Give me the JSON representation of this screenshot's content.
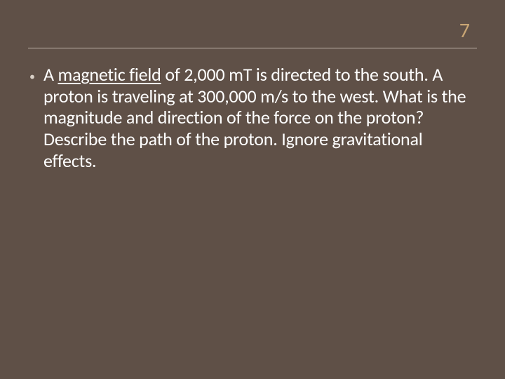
{
  "slide": {
    "number": "7",
    "number_color": "#c8a574",
    "number_fontsize": 30,
    "background_color": "#5f5047",
    "divider_color": "#c0b5aa",
    "bullet_char": "•",
    "body_prefix": "A ",
    "body_underlined": "magnetic field",
    "body_rest": " of 2,000 mT is directed to the south.  A proton is traveling at 300,000 m/s to the west.  What is the magnitude and direction of the force on the proton?  Describe the path of the proton.  Ignore gravitational effects.",
    "body_color": "#ffffff",
    "body_fontsize": 26
  }
}
